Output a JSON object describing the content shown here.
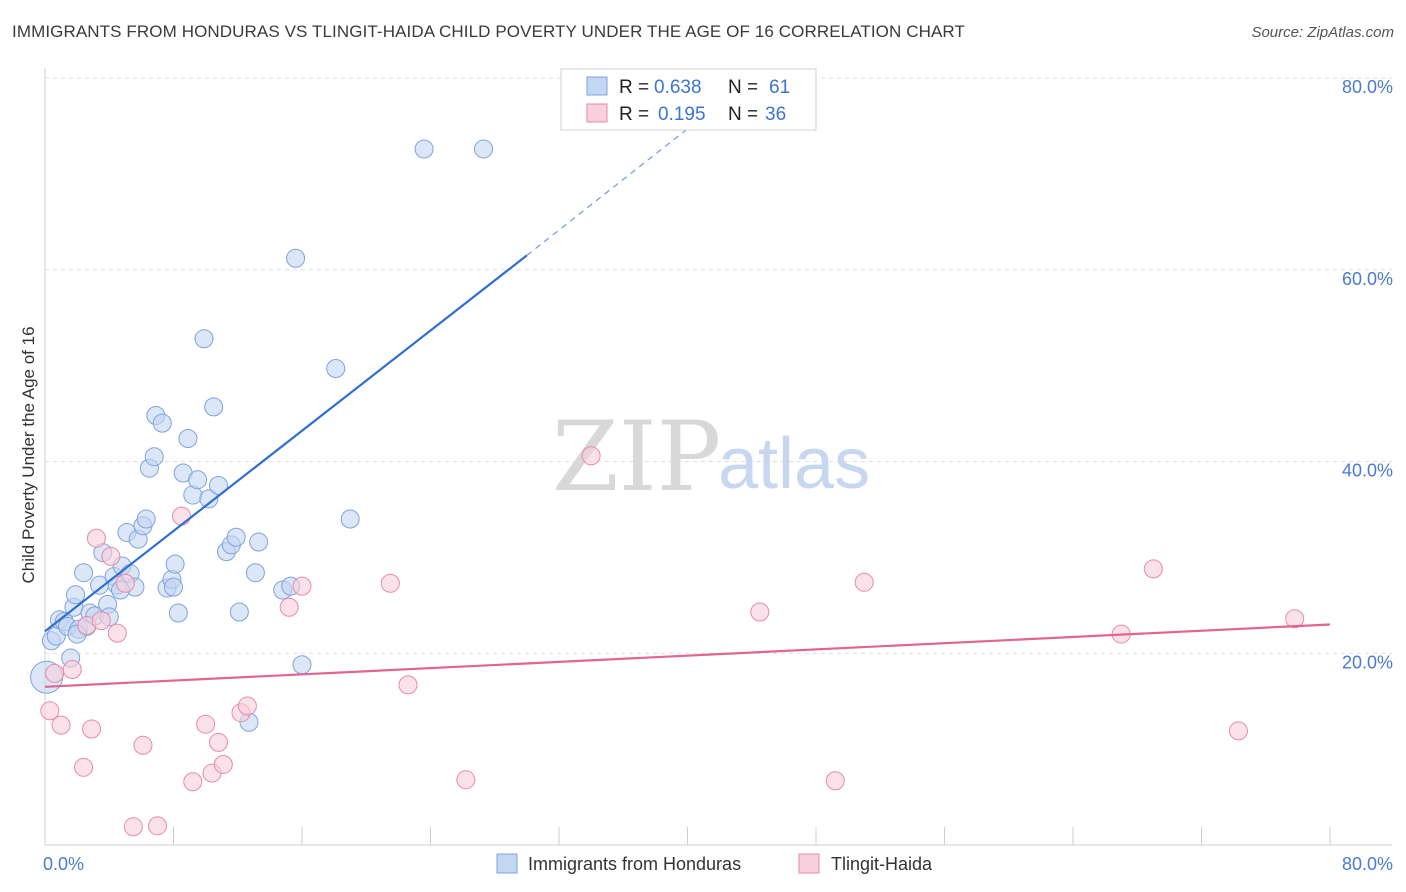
{
  "title": "IMMIGRANTS FROM HONDURAS VS TLINGIT-HAIDA CHILD POVERTY UNDER THE AGE OF 16 CORRELATION CHART",
  "source": "Source: ZipAtlas.com",
  "watermark": {
    "zip": "ZIP",
    "atlas": "atlas"
  },
  "colors": {
    "blue_fill": "#c3d6f2",
    "blue_stroke": "#7ea3dc",
    "blue_line": "#2f6fd0",
    "pink_fill": "#f8cfdc",
    "pink_stroke": "#e88aa8",
    "pink_line": "#e0658f",
    "axis_text": "#4a7bd0",
    "grid": "#dddddd"
  },
  "legend_top": {
    "rows": [
      {
        "r_label": "R = ",
        "r_value": "0.638",
        "n_label": "N = ",
        "n_value": "61",
        "series": "blue"
      },
      {
        "r_label": "R = ",
        "r_value": "0.195",
        "n_label": "N = ",
        "n_value": "36",
        "series": "pink"
      }
    ]
  },
  "chart_data": {
    "type": "scatter",
    "title": "IMMIGRANTS FROM HONDURAS VS TLINGIT-HAIDA CHILD POVERTY UNDER THE AGE OF 16 CORRELATION CHART",
    "xlabel": "",
    "ylabel": "Child Poverty Under the Age of 16",
    "xlim": [
      0,
      80
    ],
    "ylim": [
      0,
      80
    ],
    "x_tick_labels": [
      {
        "value": 0,
        "label": "0.0%"
      },
      {
        "value": 80,
        "label": "80.0%"
      }
    ],
    "y_tick_labels": [
      {
        "value": 20,
        "label": "20.0%"
      },
      {
        "value": 40,
        "label": "40.0%"
      },
      {
        "value": 60,
        "label": "60.0%"
      },
      {
        "value": 80,
        "label": "80.0%"
      }
    ],
    "x_minor_ticks": [
      0,
      8,
      16,
      24,
      32,
      40,
      48,
      56,
      64,
      72,
      80
    ],
    "grid": true,
    "legend_position": "bottom",
    "series": [
      {
        "name": "Immigrants from Honduras",
        "color": "blue",
        "r": 0.638,
        "n": 61,
        "trend": {
          "x0": 0,
          "y0": 22.3,
          "x1": 30,
          "y1": 61.5,
          "dash_to_x": 42.5,
          "dash_to_y": 78
        },
        "points": [
          [
            0.1,
            17.5
          ],
          [
            0.4,
            21.3
          ],
          [
            0.7,
            21.8
          ],
          [
            0.9,
            23.5
          ],
          [
            1.2,
            23.3
          ],
          [
            1.4,
            22.8
          ],
          [
            1.6,
            19.5
          ],
          [
            1.8,
            24.8
          ],
          [
            1.9,
            26.1
          ],
          [
            2.1,
            22.5
          ],
          [
            2.4,
            28.4
          ],
          [
            2.6,
            22.8
          ],
          [
            2.8,
            24.2
          ],
          [
            3.1,
            23.9
          ],
          [
            3.4,
            27.1
          ],
          [
            3.6,
            30.5
          ],
          [
            3.9,
            25.1
          ],
          [
            4.0,
            23.8
          ],
          [
            4.3,
            28.0
          ],
          [
            4.5,
            27.1
          ],
          [
            4.8,
            29.1
          ],
          [
            5.1,
            32.6
          ],
          [
            5.3,
            28.3
          ],
          [
            5.6,
            26.9
          ],
          [
            5.8,
            31.9
          ],
          [
            6.1,
            33.3
          ],
          [
            6.3,
            34.0
          ],
          [
            6.5,
            39.3
          ],
          [
            6.8,
            40.5
          ],
          [
            6.9,
            44.8
          ],
          [
            7.3,
            44.0
          ],
          [
            7.6,
            26.8
          ],
          [
            7.9,
            27.7
          ],
          [
            8.1,
            29.3
          ],
          [
            8.3,
            24.2
          ],
          [
            8.6,
            38.8
          ],
          [
            8.9,
            42.4
          ],
          [
            9.2,
            36.5
          ],
          [
            9.5,
            38.1
          ],
          [
            9.9,
            52.8
          ],
          [
            10.2,
            36.1
          ],
          [
            10.5,
            45.7
          ],
          [
            10.8,
            37.5
          ],
          [
            11.3,
            30.6
          ],
          [
            11.6,
            31.3
          ],
          [
            11.9,
            32.1
          ],
          [
            12.1,
            24.3
          ],
          [
            12.7,
            12.8
          ],
          [
            13.1,
            28.4
          ],
          [
            13.3,
            31.6
          ],
          [
            14.8,
            26.6
          ],
          [
            15.3,
            27.0
          ],
          [
            16.0,
            18.8
          ],
          [
            15.6,
            61.2
          ],
          [
            18.1,
            49.7
          ],
          [
            19.0,
            34.0
          ],
          [
            23.6,
            72.6
          ],
          [
            27.3,
            72.6
          ],
          [
            4.7,
            26.6
          ],
          [
            8.0,
            26.9
          ],
          [
            2.0,
            22.0
          ]
        ]
      },
      {
        "name": "Tlingit-Haida",
        "color": "pink",
        "r": 0.195,
        "n": 36,
        "trend": {
          "x0": 0,
          "y0": 16.5,
          "x1": 80,
          "y1": 23.0
        },
        "points": [
          [
            0.3,
            14.0
          ],
          [
            0.6,
            17.9
          ],
          [
            1.0,
            12.5
          ],
          [
            1.7,
            18.3
          ],
          [
            2.4,
            8.1
          ],
          [
            2.6,
            22.9
          ],
          [
            2.9,
            12.1
          ],
          [
            3.2,
            32.0
          ],
          [
            3.5,
            23.4
          ],
          [
            4.1,
            30.1
          ],
          [
            4.5,
            22.1
          ],
          [
            5.0,
            27.3
          ],
          [
            5.5,
            1.9
          ],
          [
            6.1,
            10.4
          ],
          [
            7.0,
            2.0
          ],
          [
            8.5,
            34.3
          ],
          [
            9.2,
            6.6
          ],
          [
            10.0,
            12.6
          ],
          [
            10.4,
            7.5
          ],
          [
            10.8,
            10.7
          ],
          [
            11.1,
            8.4
          ],
          [
            12.2,
            13.8
          ],
          [
            12.6,
            14.5
          ],
          [
            15.2,
            24.8
          ],
          [
            16.0,
            27.0
          ],
          [
            21.5,
            27.3
          ],
          [
            22.6,
            16.7
          ],
          [
            26.2,
            6.8
          ],
          [
            34.0,
            40.6
          ],
          [
            44.5,
            24.3
          ],
          [
            49.2,
            6.7
          ],
          [
            51.0,
            27.4
          ],
          [
            67.0,
            22.0
          ],
          [
            69.0,
            28.8
          ],
          [
            74.3,
            11.9
          ],
          [
            77.8,
            23.6
          ]
        ]
      }
    ]
  }
}
